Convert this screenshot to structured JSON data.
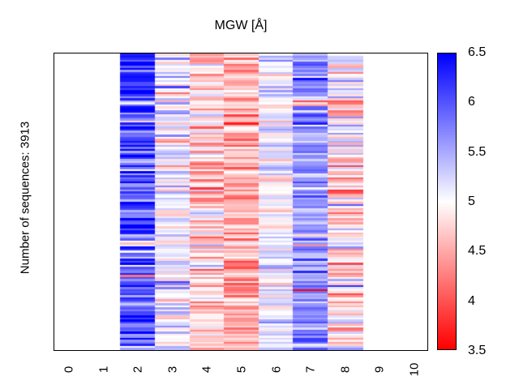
{
  "figure": {
    "title": "MGW [Å]",
    "ylabel": "Number of sequences: 3913"
  },
  "chart_data": {
    "type": "heatmap",
    "title": "MGW [Å]",
    "ylabel": "Number of sequences: 3913",
    "n_sequences": 3913,
    "x_tick_labels": [
      "0",
      "1",
      "2",
      "3",
      "4",
      "5",
      "6",
      "7",
      "8",
      "9",
      "10"
    ],
    "x_axis_range": [
      -0.45,
      10.35
    ],
    "heatmap_span_x": [
      1.5,
      8.5
    ],
    "columns": [
      {
        "x": 2,
        "mean_mgw": 5.95,
        "std_mgw": 0.5
      },
      {
        "x": 3,
        "mean_mgw": 5.08,
        "std_mgw": 0.38
      },
      {
        "x": 4,
        "mean_mgw": 4.72,
        "std_mgw": 0.33
      },
      {
        "x": 5,
        "mean_mgw": 4.5,
        "std_mgw": 0.3
      },
      {
        "x": 6,
        "mean_mgw": 5.08,
        "std_mgw": 0.25
      },
      {
        "x": 7,
        "mean_mgw": 5.6,
        "std_mgw": 0.3
      },
      {
        "x": 8,
        "mean_mgw": 4.82,
        "std_mgw": 0.42
      }
    ],
    "low_outlier_fraction": 0.02,
    "low_outlier_value": 4.15,
    "colorbar": {
      "min": 3.5,
      "max": 6.5,
      "mid": 5.0,
      "tick_labels_top_to_bottom": [
        "6.5",
        "6",
        "5.5",
        "5",
        "4.5",
        "4",
        "3.5"
      ],
      "high_color": "#0000ff",
      "mid_color": "#ffffff",
      "low_color": "#ff0000"
    },
    "grid": false,
    "legend_position": "right-colorbar",
    "rendered_rows": 146,
    "random_seed": 1311
  }
}
